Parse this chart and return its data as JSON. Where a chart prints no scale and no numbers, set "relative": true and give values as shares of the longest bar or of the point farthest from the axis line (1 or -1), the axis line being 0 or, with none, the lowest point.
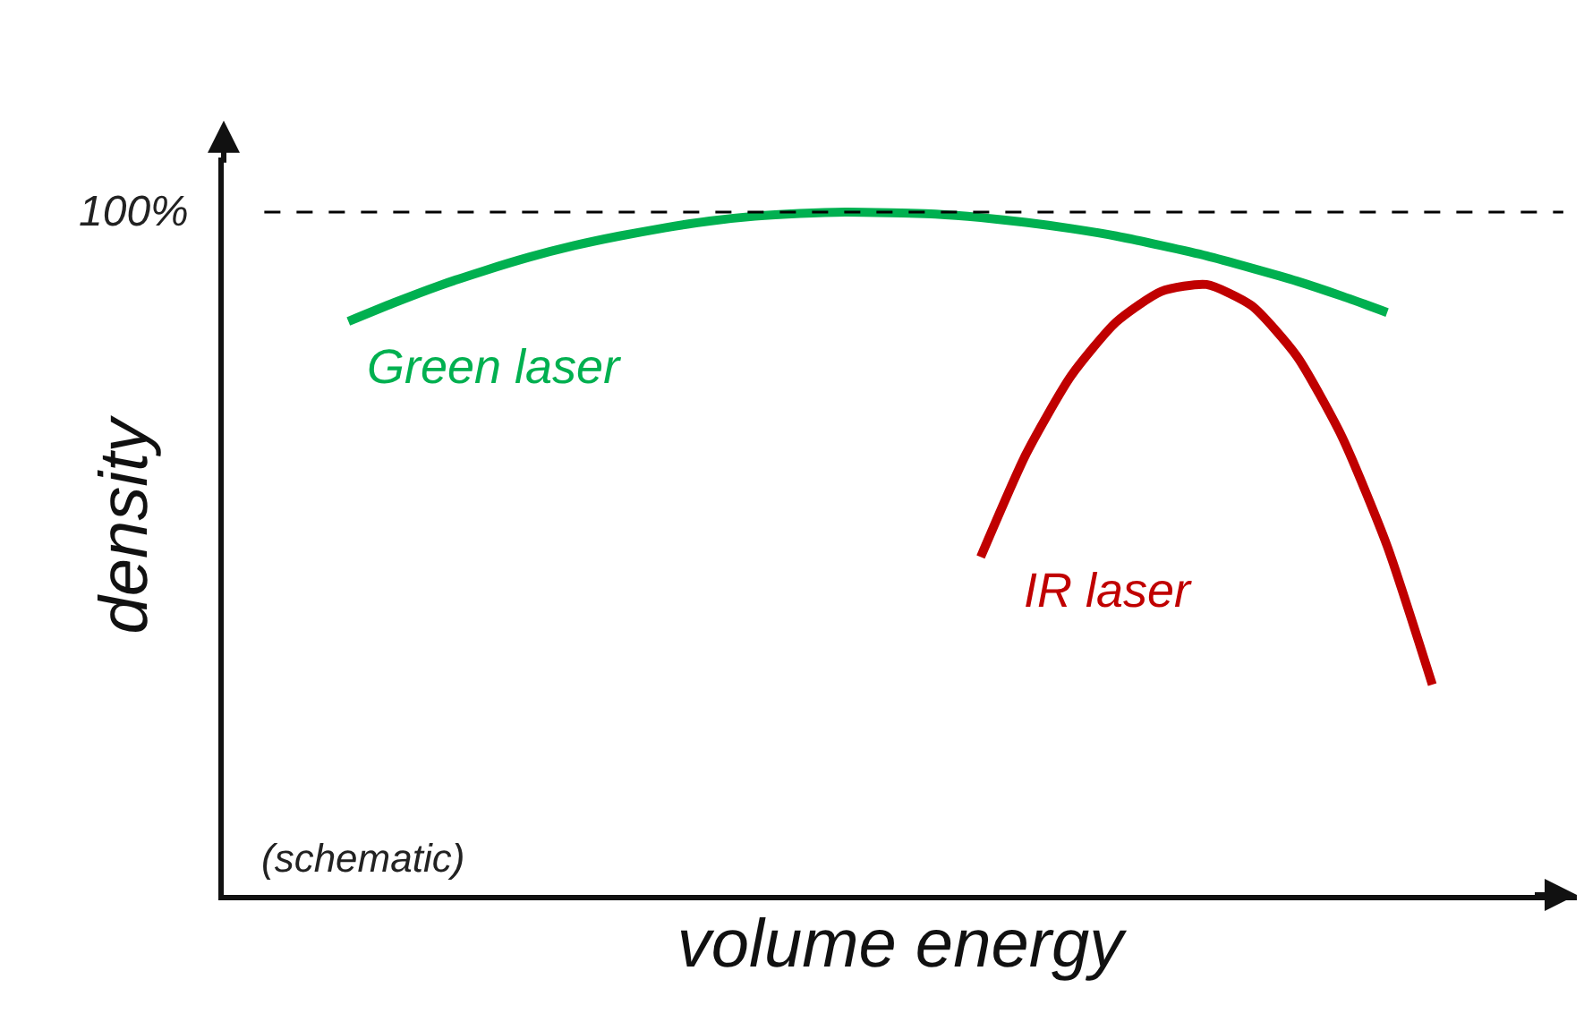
{
  "chart_data": {
    "type": "line",
    "xlabel": "volume energy",
    "ylabel": "density",
    "relative": true,
    "legend": false,
    "grid": false,
    "marker": "none",
    "line_style": "solid",
    "categories": [
      null,
      null,
      null,
      null,
      null,
      null,
      null,
      null,
      null,
      null,
      null,
      null,
      null,
      null,
      null,
      null,
      null,
      null,
      null,
      null,
      null,
      null,
      null,
      null,
      null
    ],
    "series": [
      {
        "name": "Green laser",
        "color": "#00b050",
        "values": [
          0.84,
          0.867,
          0.892,
          0.914,
          0.934,
          0.951,
          0.965,
          0.977,
          0.987,
          0.994,
          0.998,
          1.0,
          0.999,
          0.997,
          0.992,
          0.985,
          0.976,
          0.965,
          0.951,
          0.936,
          0.918,
          0.899,
          0.877,
          0.853,
          null
        ]
      },
      {
        "name": "IR laser",
        "color": "#c00000",
        "values": [
          null,
          null,
          null,
          null,
          null,
          null,
          null,
          null,
          null,
          null,
          null,
          null,
          null,
          null,
          0.495,
          0.645,
          0.76,
          0.839,
          0.884,
          0.894,
          0.863,
          0.789,
          0.671,
          0.511,
          0.308
        ]
      }
    ],
    "ref_lines": [
      {
        "axis": "y",
        "value": 1.0,
        "label": "100%",
        "color": "#000000",
        "line_style": "dashed"
      }
    ],
    "annotations": [
      "(schematic)"
    ]
  }
}
